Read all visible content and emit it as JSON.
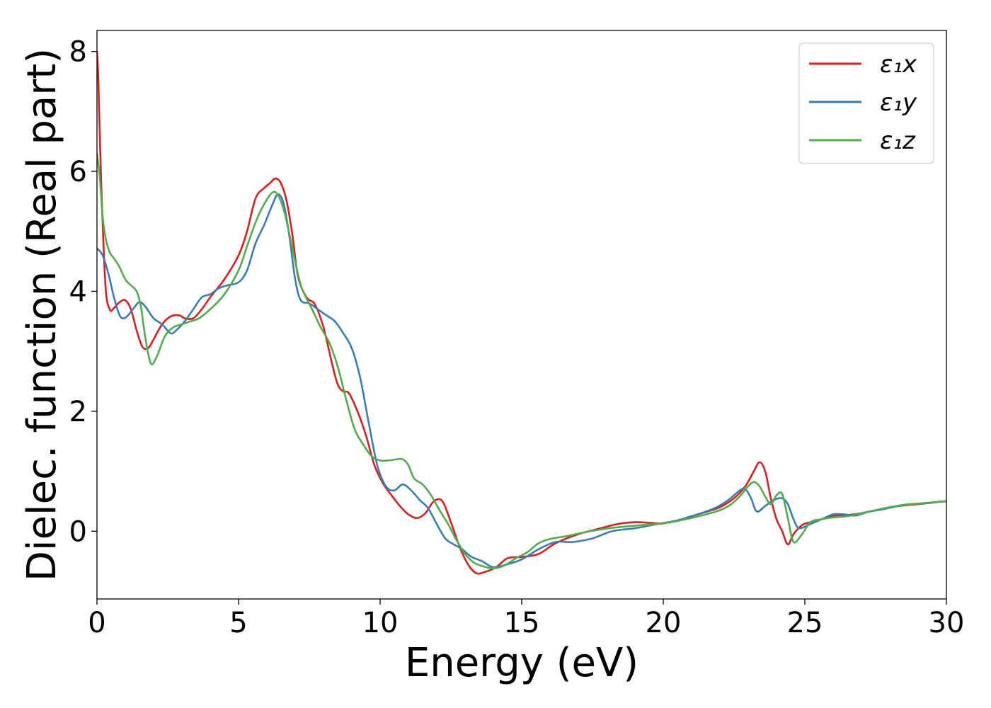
{
  "chart_data": {
    "type": "line",
    "xlabel": "Energy (eV)",
    "ylabel": "Dielec. function (Real part)",
    "xlim": [
      0,
      30
    ],
    "ylim": [
      -1.13,
      8.35
    ],
    "xticks": [
      0,
      5,
      10,
      15,
      20,
      25,
      30
    ],
    "yticks": [
      0,
      2,
      4,
      6,
      8
    ],
    "grid": false,
    "legend_position": "top-right",
    "series": [
      {
        "name": "ε₁x",
        "color": "#e41a1c",
        "x": [
          0,
          0.05,
          0.15,
          0.3,
          0.45,
          0.6,
          0.8,
          1.0,
          1.2,
          1.4,
          1.6,
          1.8,
          2.0,
          2.3,
          2.6,
          2.9,
          3.1,
          3.4,
          3.7,
          4.0,
          4.5,
          5.0,
          5.3,
          5.6,
          5.9,
          6.1,
          6.3,
          6.5,
          6.7,
          6.9,
          7.1,
          7.4,
          7.7,
          8.0,
          8.3,
          8.5,
          8.7,
          8.9,
          9.2,
          9.5,
          9.8,
          10.1,
          10.4,
          10.7,
          11.0,
          11.3,
          11.6,
          11.9,
          12.2,
          12.5,
          12.8,
          13.1,
          13.4,
          13.7,
          14.1,
          14.5,
          15.0,
          15.6,
          16.2,
          17.0,
          17.8,
          18.4,
          19.0,
          19.5,
          20.0,
          20.5,
          21.0,
          21.5,
          22.0,
          22.5,
          22.9,
          23.2,
          23.4,
          23.6,
          23.8,
          24.0,
          24.2,
          24.4,
          24.6,
          24.9,
          25.2,
          25.6,
          26.0,
          26.5,
          27.0,
          27.5,
          28.0,
          28.5,
          29.0,
          29.5,
          30.0
        ],
        "values": [
          8.0,
          7.5,
          5.8,
          4.1,
          3.7,
          3.72,
          3.82,
          3.85,
          3.7,
          3.35,
          3.08,
          3.05,
          3.2,
          3.45,
          3.58,
          3.6,
          3.55,
          3.55,
          3.7,
          3.9,
          4.2,
          4.6,
          5.0,
          5.55,
          5.72,
          5.8,
          5.88,
          5.8,
          5.5,
          4.95,
          4.25,
          3.9,
          3.78,
          3.4,
          2.8,
          2.45,
          2.33,
          2.3,
          2.0,
          1.6,
          1.1,
          0.8,
          0.6,
          0.42,
          0.28,
          0.22,
          0.3,
          0.5,
          0.5,
          0.15,
          -0.25,
          -0.55,
          -0.7,
          -0.68,
          -0.6,
          -0.45,
          -0.43,
          -0.38,
          -0.2,
          -0.05,
          0.05,
          0.12,
          0.15,
          0.14,
          0.13,
          0.18,
          0.25,
          0.32,
          0.4,
          0.55,
          0.75,
          1.0,
          1.15,
          1.0,
          0.55,
          0.2,
          0.0,
          -0.22,
          -0.05,
          0.1,
          0.15,
          0.2,
          0.25,
          0.27,
          0.3,
          0.35,
          0.4,
          0.43,
          0.45,
          0.48,
          0.5
        ]
      },
      {
        "name": "ε₁y",
        "color": "#377eb8",
        "x": [
          0,
          0.2,
          0.4,
          0.6,
          0.8,
          0.95,
          1.1,
          1.3,
          1.5,
          1.7,
          2.0,
          2.3,
          2.6,
          2.8,
          3.1,
          3.4,
          3.7,
          4.0,
          4.3,
          4.6,
          5.0,
          5.3,
          5.6,
          5.9,
          6.2,
          6.4,
          6.6,
          6.8,
          7.0,
          7.2,
          7.5,
          7.8,
          8.1,
          8.4,
          8.7,
          9.0,
          9.3,
          9.6,
          9.9,
          10.2,
          10.5,
          10.8,
          11.1,
          11.4,
          11.7,
          12.0,
          12.3,
          12.6,
          12.9,
          13.2,
          13.6,
          14.0,
          14.5,
          15.0,
          15.6,
          16.2,
          16.8,
          17.5,
          18.2,
          19.0,
          19.8,
          20.5,
          21.2,
          21.8,
          22.3,
          22.7,
          22.9,
          23.1,
          23.3,
          23.6,
          23.9,
          24.2,
          24.4,
          24.6,
          24.8,
          25.2,
          25.6,
          26.0,
          26.4,
          26.8,
          27.2,
          27.7,
          28.2,
          28.7,
          29.2,
          29.6,
          30.0
        ],
        "values": [
          4.72,
          4.6,
          4.3,
          3.9,
          3.6,
          3.55,
          3.6,
          3.72,
          3.82,
          3.75,
          3.55,
          3.45,
          3.3,
          3.35,
          3.5,
          3.7,
          3.9,
          3.95,
          4.05,
          4.1,
          4.15,
          4.35,
          4.8,
          5.1,
          5.45,
          5.62,
          5.45,
          4.9,
          4.2,
          3.85,
          3.8,
          3.7,
          3.6,
          3.5,
          3.3,
          3.05,
          2.55,
          1.8,
          1.1,
          0.75,
          0.68,
          0.78,
          0.68,
          0.52,
          0.38,
          0.12,
          -0.12,
          -0.22,
          -0.3,
          -0.42,
          -0.5,
          -0.6,
          -0.55,
          -0.47,
          -0.3,
          -0.18,
          -0.18,
          -0.12,
          0.0,
          0.05,
          0.12,
          0.18,
          0.28,
          0.38,
          0.52,
          0.68,
          0.7,
          0.55,
          0.33,
          0.42,
          0.52,
          0.55,
          0.45,
          0.2,
          0.05,
          0.12,
          0.2,
          0.28,
          0.28,
          0.26,
          0.32,
          0.36,
          0.41,
          0.45,
          0.46,
          0.48,
          0.5
        ]
      },
      {
        "name": "ε₁z",
        "color": "#4daf4a",
        "x": [
          0,
          0.1,
          0.2,
          0.3,
          0.45,
          0.6,
          0.8,
          1.0,
          1.2,
          1.4,
          1.55,
          1.7,
          1.9,
          2.1,
          2.4,
          2.7,
          3.0,
          3.3,
          3.6,
          4.0,
          4.5,
          5.0,
          5.3,
          5.6,
          5.9,
          6.2,
          6.4,
          6.6,
          6.8,
          7.0,
          7.2,
          7.4,
          7.6,
          7.9,
          8.2,
          8.5,
          8.8,
          9.1,
          9.4,
          9.7,
          10.0,
          10.3,
          10.6,
          10.8,
          11.0,
          11.2,
          11.5,
          11.8,
          12.1,
          12.4,
          12.7,
          13.0,
          13.3,
          13.6,
          14.0,
          14.4,
          14.8,
          15.2,
          15.6,
          16.0,
          16.6,
          17.2,
          17.8,
          18.5,
          19.2,
          20.0,
          20.8,
          21.5,
          22.0,
          22.4,
          22.7,
          23.0,
          23.2,
          23.4,
          23.6,
          23.8,
          24.0,
          24.2,
          24.4,
          24.6,
          24.9,
          25.2,
          25.6,
          26.0,
          26.5,
          27.0,
          27.5,
          28.0,
          28.5,
          29.0,
          29.5,
          30.0
        ],
        "values": [
          6.3,
          5.9,
          5.25,
          4.9,
          4.65,
          4.55,
          4.4,
          4.2,
          4.1,
          4.0,
          3.75,
          3.25,
          2.8,
          2.9,
          3.25,
          3.4,
          3.45,
          3.5,
          3.55,
          3.7,
          3.95,
          4.35,
          4.75,
          5.15,
          5.45,
          5.65,
          5.6,
          5.35,
          4.95,
          4.5,
          4.1,
          3.88,
          3.7,
          3.4,
          3.15,
          2.75,
          2.2,
          1.7,
          1.45,
          1.25,
          1.18,
          1.18,
          1.2,
          1.2,
          1.1,
          0.88,
          0.78,
          0.6,
          0.35,
          0.12,
          -0.15,
          -0.38,
          -0.52,
          -0.58,
          -0.62,
          -0.57,
          -0.45,
          -0.35,
          -0.2,
          -0.13,
          -0.08,
          -0.02,
          0.03,
          0.07,
          0.1,
          0.13,
          0.2,
          0.28,
          0.35,
          0.45,
          0.58,
          0.75,
          0.82,
          0.75,
          0.58,
          0.45,
          0.6,
          0.62,
          0.22,
          -0.18,
          -0.05,
          0.15,
          0.2,
          0.23,
          0.25,
          0.3,
          0.35,
          0.4,
          0.44,
          0.46,
          0.48,
          0.5
        ]
      }
    ]
  }
}
